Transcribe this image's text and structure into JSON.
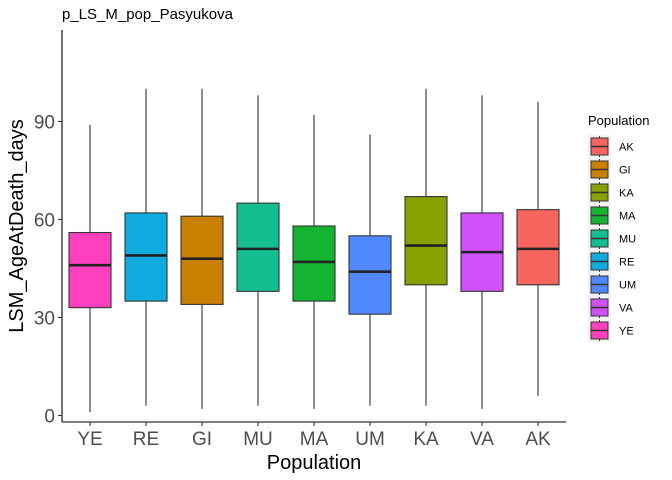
{
  "chart_data": {
    "type": "boxplot",
    "title": "p_LS_M_pop_Pasyukova",
    "xlabel": "Population",
    "ylabel": "LSM_AgeAtDeath_days",
    "ylim": [
      -2,
      118
    ],
    "yticks": [
      0,
      30,
      60,
      90
    ],
    "grid": false,
    "legend_position": "right",
    "legend_title": "Population",
    "categories": [
      "YE",
      "RE",
      "GI",
      "MU",
      "MA",
      "UM",
      "KA",
      "VA",
      "AK"
    ],
    "boxes": [
      {
        "name": "YE",
        "min": 1,
        "q1": 33,
        "median": 46,
        "q3": 56,
        "max": 89,
        "color": "#FF40BE"
      },
      {
        "name": "RE",
        "min": 3,
        "q1": 35,
        "median": 49,
        "q3": 62,
        "max": 100,
        "color": "#10ACE0"
      },
      {
        "name": "GI",
        "min": 2,
        "q1": 34,
        "median": 48,
        "q3": 61,
        "max": 100,
        "color": "#C98000"
      },
      {
        "name": "MU",
        "min": 3,
        "q1": 38,
        "median": 51,
        "q3": 65,
        "max": 98,
        "color": "#15BE90"
      },
      {
        "name": "MA",
        "min": 2,
        "q1": 35,
        "median": 47,
        "q3": 58,
        "max": 92,
        "color": "#14B432"
      },
      {
        "name": "UM",
        "min": 3,
        "q1": 31,
        "median": 44,
        "q3": 55,
        "max": 86,
        "color": "#5088FF"
      },
      {
        "name": "KA",
        "min": 3,
        "q1": 40,
        "median": 52,
        "q3": 67,
        "max": 100,
        "color": "#88A000"
      },
      {
        "name": "VA",
        "min": 2,
        "q1": 38,
        "median": 50,
        "q3": 62,
        "max": 98,
        "color": "#D050FA"
      },
      {
        "name": "AK",
        "min": 6,
        "q1": 40,
        "median": 51,
        "q3": 63,
        "max": 96,
        "color": "#F8645E"
      }
    ],
    "legend": [
      {
        "label": "AK",
        "color": "#F8645E"
      },
      {
        "label": "GI",
        "color": "#C98000"
      },
      {
        "label": "KA",
        "color": "#88A000"
      },
      {
        "label": "MA",
        "color": "#14B432"
      },
      {
        "label": "MU",
        "color": "#15BE90"
      },
      {
        "label": "RE",
        "color": "#10ACE0"
      },
      {
        "label": "UM",
        "color": "#5088FF"
      },
      {
        "label": "VA",
        "color": "#D050FA"
      },
      {
        "label": "YE",
        "color": "#FF40BE"
      }
    ]
  }
}
